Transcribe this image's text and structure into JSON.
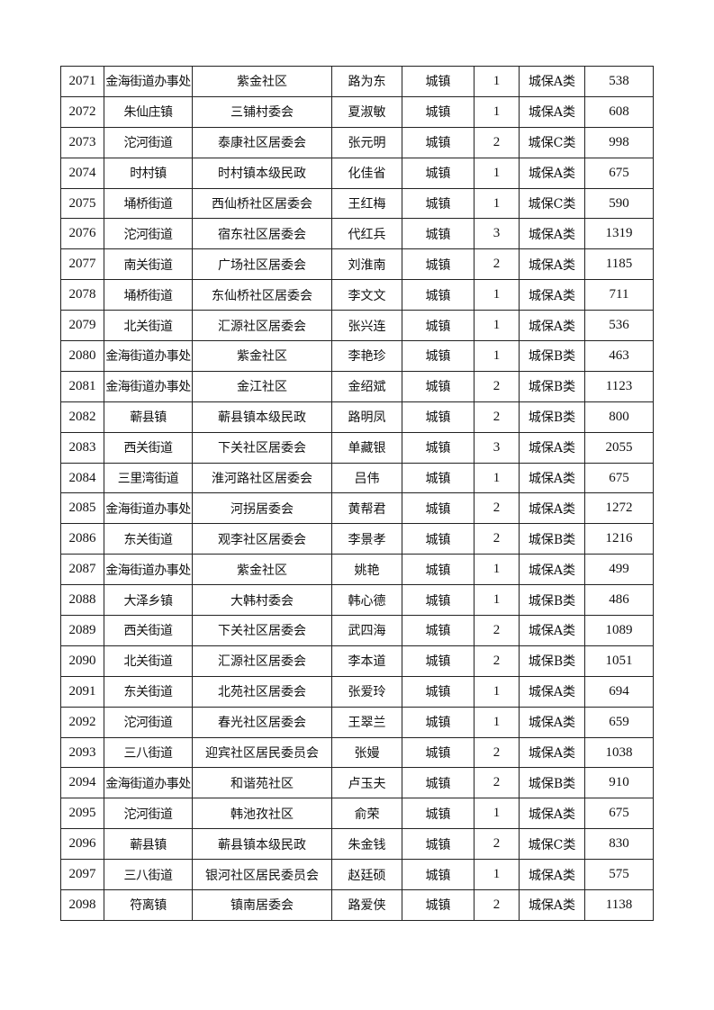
{
  "rows": [
    [
      "2071",
      "金海街道办事处",
      "紫金社区",
      "路为东",
      "城镇",
      "1",
      "城保A类",
      "538"
    ],
    [
      "2072",
      "朱仙庄镇",
      "三铺村委会",
      "夏淑敏",
      "城镇",
      "1",
      "城保A类",
      "608"
    ],
    [
      "2073",
      "沱河街道",
      "泰康社区居委会",
      "张元明",
      "城镇",
      "2",
      "城保C类",
      "998"
    ],
    [
      "2074",
      "时村镇",
      "时村镇本级民政",
      "化佳省",
      "城镇",
      "1",
      "城保A类",
      "675"
    ],
    [
      "2075",
      "埇桥街道",
      "西仙桥社区居委会",
      "王红梅",
      "城镇",
      "1",
      "城保C类",
      "590"
    ],
    [
      "2076",
      "沱河街道",
      "宿东社区居委会",
      "代红兵",
      "城镇",
      "3",
      "城保A类",
      "1319"
    ],
    [
      "2077",
      "南关街道",
      "广场社区居委会",
      "刘淮南",
      "城镇",
      "2",
      "城保A类",
      "1185"
    ],
    [
      "2078",
      "埇桥街道",
      "东仙桥社区居委会",
      "李文文",
      "城镇",
      "1",
      "城保A类",
      "711"
    ],
    [
      "2079",
      "北关街道",
      "汇源社区居委会",
      "张兴连",
      "城镇",
      "1",
      "城保A类",
      "536"
    ],
    [
      "2080",
      "金海街道办事处",
      "紫金社区",
      "李艳珍",
      "城镇",
      "1",
      "城保B类",
      "463"
    ],
    [
      "2081",
      "金海街道办事处",
      "金江社区",
      "金绍斌",
      "城镇",
      "2",
      "城保B类",
      "1123"
    ],
    [
      "2082",
      "蕲县镇",
      "蕲县镇本级民政",
      "路明凤",
      "城镇",
      "2",
      "城保B类",
      "800"
    ],
    [
      "2083",
      "西关街道",
      "下关社区居委会",
      "单藏银",
      "城镇",
      "3",
      "城保A类",
      "2055"
    ],
    [
      "2084",
      "三里湾街道",
      "淮河路社区居委会",
      "吕伟",
      "城镇",
      "1",
      "城保A类",
      "675"
    ],
    [
      "2085",
      "金海街道办事处",
      "河拐居委会",
      "黄帮君",
      "城镇",
      "2",
      "城保A类",
      "1272"
    ],
    [
      "2086",
      "东关街道",
      "观李社区居委会",
      "李景孝",
      "城镇",
      "2",
      "城保B类",
      "1216"
    ],
    [
      "2087",
      "金海街道办事处",
      "紫金社区",
      "姚艳",
      "城镇",
      "1",
      "城保A类",
      "499"
    ],
    [
      "2088",
      "大泽乡镇",
      "大韩村委会",
      "韩心德",
      "城镇",
      "1",
      "城保B类",
      "486"
    ],
    [
      "2089",
      "西关街道",
      "下关社区居委会",
      "武四海",
      "城镇",
      "2",
      "城保A类",
      "1089"
    ],
    [
      "2090",
      "北关街道",
      "汇源社区居委会",
      "李本道",
      "城镇",
      "2",
      "城保B类",
      "1051"
    ],
    [
      "2091",
      "东关街道",
      "北苑社区居委会",
      "张爱玲",
      "城镇",
      "1",
      "城保A类",
      "694"
    ],
    [
      "2092",
      "沱河街道",
      "春光社区居委会",
      "王翠兰",
      "城镇",
      "1",
      "城保A类",
      "659"
    ],
    [
      "2093",
      "三八街道",
      "迎宾社区居民委员会",
      "张嫚",
      "城镇",
      "2",
      "城保A类",
      "1038"
    ],
    [
      "2094",
      "金海街道办事处",
      "和谐苑社区",
      "卢玉夫",
      "城镇",
      "2",
      "城保B类",
      "910"
    ],
    [
      "2095",
      "沱河街道",
      "韩池孜社区",
      "俞荣",
      "城镇",
      "1",
      "城保A类",
      "675"
    ],
    [
      "2096",
      "蕲县镇",
      "蕲县镇本级民政",
      "朱金钱",
      "城镇",
      "2",
      "城保C类",
      "830"
    ],
    [
      "2097",
      "三八街道",
      "银河社区居民委员会",
      "赵廷硕",
      "城镇",
      "1",
      "城保A类",
      "575"
    ],
    [
      "2098",
      "符离镇",
      "镇南居委会",
      "路爱侠",
      "城镇",
      "2",
      "城保A类",
      "1138"
    ]
  ]
}
